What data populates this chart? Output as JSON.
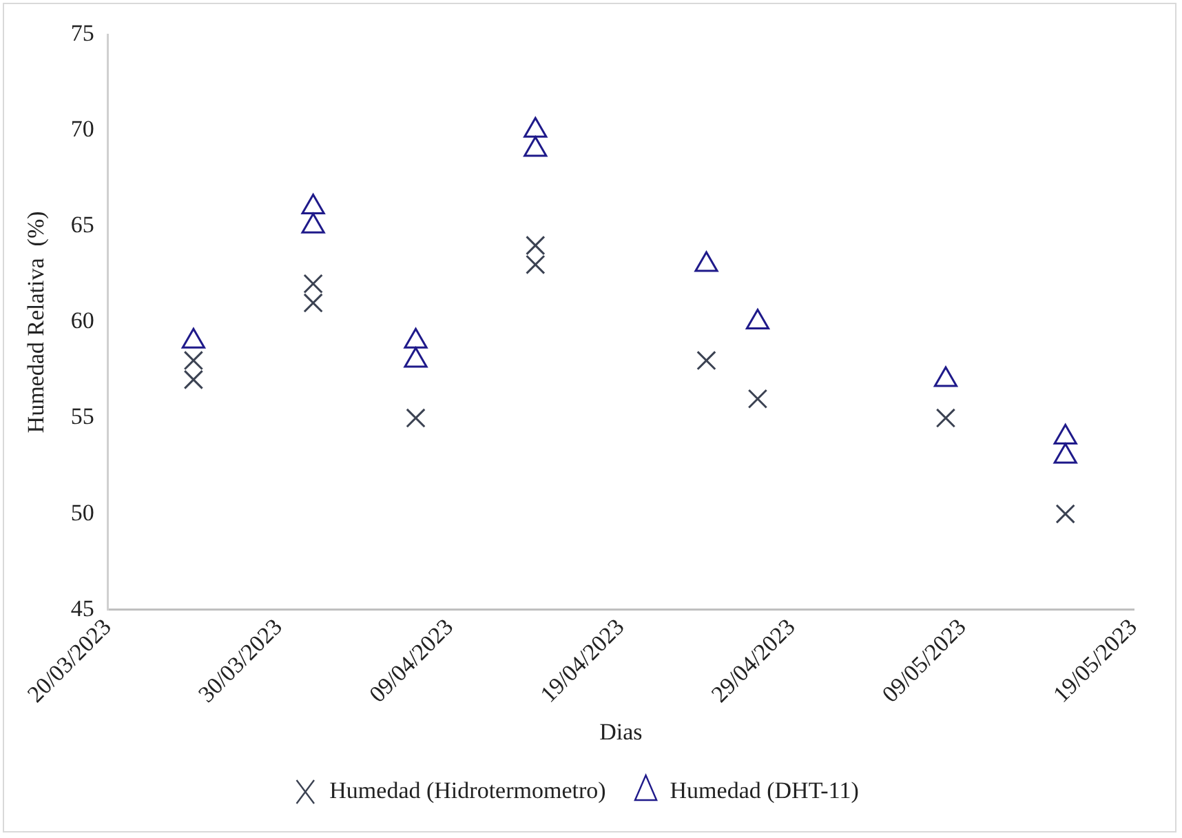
{
  "chart_data": {
    "type": "scatter",
    "xlabel": "Dias",
    "ylabel": "Humedad Relativa  (%)",
    "series": [
      {
        "name": "Humedad (Hidrotermometro)",
        "color": "#3b4252",
        "marker": "cross",
        "x": [
          "2023-03-25",
          "2023-03-25",
          "2023-04-01",
          "2023-04-01",
          "2023-04-07",
          "2023-04-14",
          "2023-04-14",
          "2023-04-24",
          "2023-04-27",
          "2023-05-08",
          "2023-05-15"
        ],
        "values": [
          58,
          57,
          62,
          61,
          55,
          64,
          63,
          58,
          56,
          55,
          50
        ]
      },
      {
        "name": "Humedad (DHT-11)",
        "color": "#1f1a8a",
        "marker": "triangle",
        "x": [
          "2023-03-25",
          "2023-04-01",
          "2023-04-01",
          "2023-04-07",
          "2023-04-07",
          "2023-04-14",
          "2023-04-14",
          "2023-04-24",
          "2023-04-27",
          "2023-05-08",
          "2023-05-15",
          "2023-05-15"
        ],
        "values": [
          59,
          66,
          65,
          59,
          58,
          70,
          69,
          63,
          60,
          57,
          54,
          53
        ]
      }
    ],
    "xlim": [
      "2023-03-20",
      "2023-05-19"
    ],
    "xticks": [
      {
        "value": "2023-03-20",
        "label": "20/03/2023"
      },
      {
        "value": "2023-03-30",
        "label": "30/03/2023"
      },
      {
        "value": "2023-04-09",
        "label": "09/04/2023"
      },
      {
        "value": "2023-04-19",
        "label": "19/04/2023"
      },
      {
        "value": "2023-04-29",
        "label": "29/04/2023"
      },
      {
        "value": "2023-05-09",
        "label": "09/05/2023"
      },
      {
        "value": "2023-05-19",
        "label": "19/05/2023"
      }
    ],
    "ylim": [
      45,
      75
    ],
    "yticks": [
      45,
      50,
      55,
      60,
      65,
      70,
      75
    ],
    "grid": false,
    "legend": "bottom"
  }
}
